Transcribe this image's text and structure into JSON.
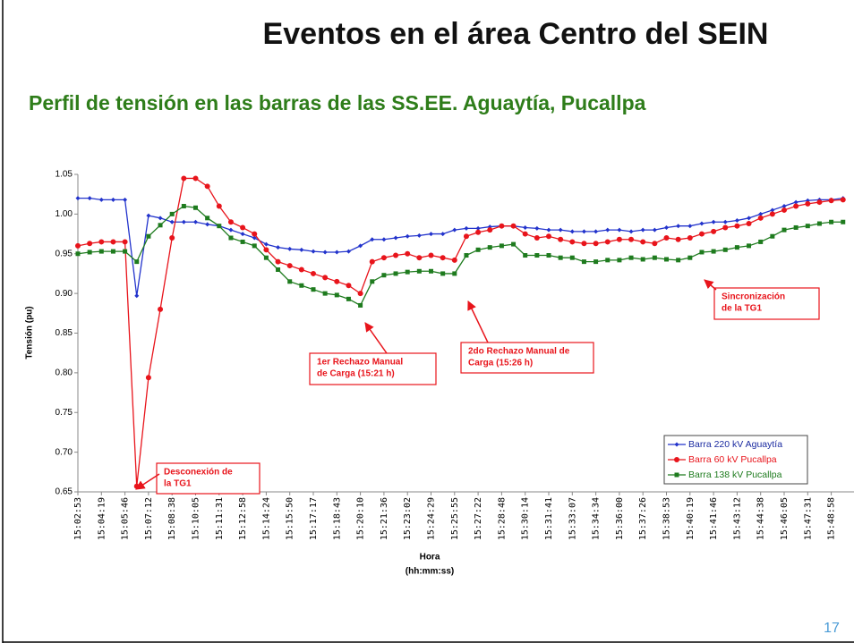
{
  "title": "Eventos en el área Centro del SEIN",
  "subtitle": "Perfil de tensión en las barras de las SS.EE. Aguaytía, Pucallpa",
  "page_number": "17",
  "chart_data": {
    "type": "line",
    "ylabel": "Tensión (pu)",
    "xlabel": [
      "Hora",
      "(hh:mm:ss)"
    ],
    "ylim": [
      0.65,
      1.05
    ],
    "yticks": [
      0.65,
      {
        "value": 0.7,
        "label": "0.70"
      },
      0.75,
      {
        "value": 0.8,
        "label": "0.80"
      },
      0.85,
      {
        "value": 0.9,
        "label": "0.90"
      },
      0.95,
      {
        "value": 1,
        "label": "1.00"
      },
      1.05
    ],
    "legend": "bottom-right",
    "categories": [
      "15:02:53",
      null,
      "15:04:19",
      null,
      "15:05:46",
      null,
      "15:07:12",
      null,
      "15:08:38",
      null,
      "15:10:05",
      null,
      "15:11:31",
      null,
      "15:12:58",
      null,
      "15:14:24",
      null,
      "15:15:50",
      null,
      "15:17:17",
      null,
      "15:18:43",
      null,
      "15:20:10",
      null,
      "15:21:36",
      null,
      "15:23:02",
      null,
      "15:24:29",
      null,
      "15:25:55",
      null,
      "15:27:22",
      null,
      "15:28:48",
      null,
      "15:30:14",
      null,
      "15:31:41",
      null,
      "15:33:07",
      null,
      "15:34:34",
      null,
      "15:36:00",
      null,
      "15:37:26",
      null,
      "15:38:53",
      null,
      "15:40:19",
      null,
      "15:41:46",
      null,
      "15:43:12",
      null,
      "15:44:38",
      null,
      "15:46:05",
      null,
      "15:47:31",
      null,
      "15:48:58",
      null
    ],
    "series": [
      {
        "name": "Barra 220 kV Aguaytía",
        "color": "#2233cc",
        "marker": "diamond",
        "values": [
          1.02,
          1.02,
          1.018,
          1.018,
          1.018,
          0.897,
          0.998,
          0.995,
          0.99,
          0.99,
          0.99,
          0.987,
          0.985,
          0.98,
          0.975,
          0.97,
          0.962,
          0.958,
          0.956,
          0.955,
          0.953,
          0.952,
          0.952,
          0.953,
          0.96,
          0.968,
          0.968,
          0.97,
          0.972,
          0.973,
          0.975,
          0.975,
          0.98,
          0.982,
          0.982,
          0.984,
          0.985,
          0.985,
          0.983,
          0.982,
          0.98,
          0.98,
          0.978,
          0.978,
          0.978,
          0.98,
          0.98,
          0.978,
          0.98,
          0.98,
          0.983,
          0.985,
          0.985,
          0.988,
          0.99,
          0.99,
          0.992,
          0.995,
          1.0,
          1.005,
          1.01,
          1.015,
          1.017,
          1.018,
          1.018,
          1.02
        ]
      },
      {
        "name": "Barra 60 kV Pucallpa",
        "color": "#e8141b",
        "marker": "circle",
        "values": [
          0.96,
          0.963,
          0.965,
          0.965,
          0.965,
          0.657,
          0.794,
          0.88,
          0.97,
          1.045,
          1.045,
          1.035,
          1.01,
          0.99,
          0.983,
          0.975,
          0.955,
          0.94,
          0.935,
          0.93,
          0.925,
          0.92,
          0.915,
          0.91,
          0.9,
          0.94,
          0.945,
          0.948,
          0.95,
          0.945,
          0.948,
          0.945,
          0.942,
          0.972,
          0.977,
          0.98,
          0.985,
          0.985,
          0.975,
          0.97,
          0.972,
          0.968,
          0.965,
          0.963,
          0.963,
          0.965,
          0.968,
          0.968,
          0.965,
          0.963,
          0.97,
          0.968,
          0.97,
          0.975,
          0.978,
          0.983,
          0.985,
          0.988,
          0.995,
          1.0,
          1.005,
          1.01,
          1.013,
          1.015,
          1.017,
          1.018
        ]
      },
      {
        "name": "Barra 138 kV Pucallpa",
        "color": "#1e7b1e",
        "marker": "square",
        "values": [
          0.95,
          0.952,
          0.953,
          0.953,
          0.953,
          0.94,
          0.972,
          0.986,
          1.0,
          1.01,
          1.008,
          0.995,
          0.985,
          0.97,
          0.965,
          0.96,
          0.945,
          0.93,
          0.915,
          0.91,
          0.905,
          0.9,
          0.898,
          0.893,
          0.885,
          0.915,
          0.923,
          0.925,
          0.927,
          0.928,
          0.928,
          0.925,
          0.925,
          0.948,
          0.955,
          0.958,
          0.96,
          0.962,
          0.948,
          0.948,
          0.948,
          0.945,
          0.945,
          0.94,
          0.94,
          0.942,
          0.942,
          0.945,
          0.943,
          0.945,
          0.943,
          0.942,
          0.945,
          0.952,
          0.953,
          0.955,
          0.958,
          0.96,
          0.965,
          0.972,
          0.98,
          0.983,
          0.985,
          0.988,
          0.99,
          0.99
        ]
      }
    ],
    "annotations": [
      [
        "Desconexión de",
        "la TG1"
      ],
      [
        "1er Rechazo Manual",
        "de Carga (15:21 h)"
      ],
      [
        "2do Rechazo Manual de",
        "Carga (15:26 h)"
      ],
      [
        "Sincronización",
        "de la TG1"
      ]
    ]
  }
}
